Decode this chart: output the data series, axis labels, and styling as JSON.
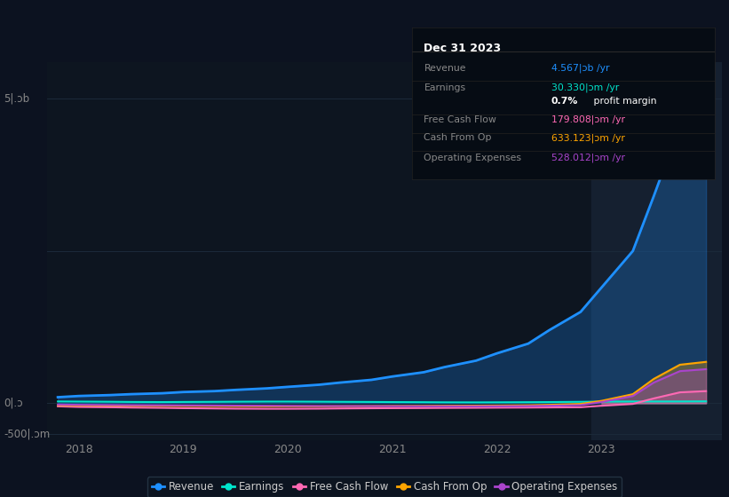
{
  "bg_color": "#0c1220",
  "plot_bg_color": "#0d1520",
  "grid_color": "#1c2a3a",
  "info_box": {
    "title": "Dec 31 2023",
    "rows": [
      {
        "label": "Revenue",
        "value": "4.567|ɔb /yr",
        "value_color": "#1e90ff",
        "separator": true
      },
      {
        "label": "Earnings",
        "value": "30.330|ɔm /yr",
        "value_color": "#00e5cc",
        "separator": false
      },
      {
        "label": "",
        "value": "0.7% profit margin",
        "value_color": "#ffffff",
        "separator": true
      },
      {
        "label": "Free Cash Flow",
        "value": "179.808|ɔm /yr",
        "value_color": "#ff69b4",
        "separator": true
      },
      {
        "label": "Cash From Op",
        "value": "633.123|ɔm /yr",
        "value_color": "#ffa500",
        "separator": true
      },
      {
        "label": "Operating Expenses",
        "value": "528.012|ɔm /yr",
        "value_color": "#aa44cc",
        "separator": false
      }
    ]
  },
  "years": [
    2017.8,
    2018.0,
    2018.3,
    2018.5,
    2018.8,
    2019.0,
    2019.3,
    2019.5,
    2019.8,
    2020.0,
    2020.3,
    2020.5,
    2020.8,
    2021.0,
    2021.3,
    2021.5,
    2021.8,
    2022.0,
    2022.3,
    2022.5,
    2022.8,
    2023.0,
    2023.3,
    2023.5,
    2023.75,
    2024.0
  ],
  "revenue": [
    100,
    120,
    135,
    150,
    165,
    185,
    200,
    220,
    245,
    270,
    305,
    340,
    385,
    440,
    510,
    595,
    700,
    820,
    980,
    1200,
    1500,
    1900,
    2500,
    3400,
    4567,
    4800
  ],
  "earnings": [
    30,
    28,
    25,
    22,
    20,
    22,
    24,
    26,
    28,
    28,
    26,
    24,
    22,
    20,
    18,
    16,
    15,
    16,
    18,
    20,
    24,
    28,
    30,
    30,
    30.33,
    32
  ],
  "free_cash_flow": [
    -50,
    -60,
    -65,
    -70,
    -75,
    -80,
    -85,
    -88,
    -90,
    -90,
    -88,
    -85,
    -82,
    -80,
    -78,
    -76,
    -74,
    -72,
    -70,
    -68,
    -65,
    -40,
    -10,
    80,
    179.808,
    200
  ],
  "cash_from_op": [
    -30,
    -35,
    -38,
    -40,
    -42,
    -44,
    -46,
    -48,
    -50,
    -50,
    -50,
    -48,
    -46,
    -44,
    -42,
    -40,
    -38,
    -36,
    -32,
    -25,
    -10,
    40,
    150,
    400,
    633.123,
    680
  ],
  "operating_expenses": [
    -20,
    -25,
    -28,
    -30,
    -32,
    -34,
    -36,
    -38,
    -40,
    -42,
    -44,
    -45,
    -46,
    -47,
    -48,
    -48,
    -48,
    -47,
    -45,
    -40,
    -30,
    20,
    120,
    340,
    528.012,
    560
  ],
  "ylim": [
    -600,
    5600
  ],
  "y_label_5b_val": 5000,
  "y_label_0_val": 0,
  "y_label_m500_val": -500,
  "xlim": [
    2017.7,
    2024.15
  ],
  "xticks": [
    2018,
    2019,
    2020,
    2021,
    2022,
    2023
  ],
  "shade_x_start": 2022.9,
  "shade_x_end": 2024.15,
  "line_colors": {
    "revenue": "#1e90ff",
    "earnings": "#00e5cc",
    "free_cash_flow": "#ff69b4",
    "cash_from_op": "#ffa500",
    "operating_expenses": "#aa44cc"
  },
  "legend": [
    {
      "label": "Revenue",
      "color": "#1e90ff"
    },
    {
      "label": "Earnings",
      "color": "#00e5cc"
    },
    {
      "label": "Free Cash Flow",
      "color": "#ff69b4"
    },
    {
      "label": "Cash From Op",
      "color": "#ffa500"
    },
    {
      "label": "Operating Expenses",
      "color": "#aa44cc"
    }
  ]
}
